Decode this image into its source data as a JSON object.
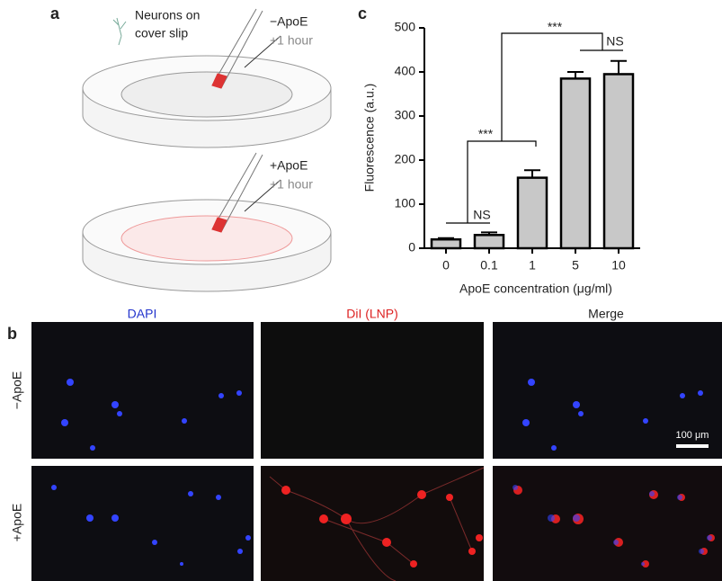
{
  "panel_a": {
    "label": "a",
    "neurons_label": [
      "Neurons on",
      "cover slip"
    ],
    "top_condition": "−ApoE",
    "top_time": "+1 hour",
    "bottom_condition": "+ApoE",
    "bottom_time": "+1 hour"
  },
  "chart_data": {
    "type": "bar",
    "panel_label": "c",
    "y_label": "Fluorescence (a.u.)",
    "x_label": "ApoE concentration (μg/ml)",
    "categories": [
      "0",
      "0.1",
      "1",
      "5",
      "10"
    ],
    "values": [
      20,
      30,
      160,
      385,
      395
    ],
    "errors": [
      3,
      6,
      17,
      15,
      30
    ],
    "color": "#c8c8c8",
    "ylim": [
      0,
      500
    ],
    "yticks": [
      0,
      100,
      200,
      300,
      400,
      500
    ],
    "annotations": [
      "NS",
      "***",
      "***",
      "NS"
    ]
  },
  "panel_b": {
    "label": "b",
    "columns": [
      "DAPI",
      "DiI (LNP)",
      "Merge"
    ],
    "rows": [
      "−ApoE",
      "+ApoE"
    ],
    "scale_bar": "100 μm"
  }
}
